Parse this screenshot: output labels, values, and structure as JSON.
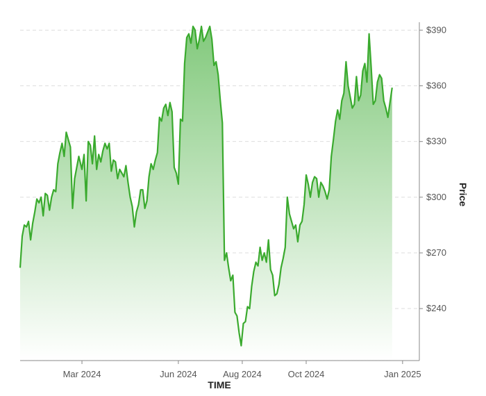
{
  "chart_data": {
    "type": "area",
    "xlabel": "TIME",
    "ylabel": "Price",
    "y_axis_position": "right",
    "grid": "horizontal-dashed",
    "xlim": [
      "2024-01-02",
      "2025-01-17"
    ],
    "ylim": [
      212,
      392
    ],
    "x_ticks": [
      {
        "date": "2024-03-01",
        "label": "Mar 2024"
      },
      {
        "date": "2024-06-01",
        "label": "Jun 2024"
      },
      {
        "date": "2024-08-01",
        "label": "Aug 2024"
      },
      {
        "date": "2024-10-01",
        "label": "Oct 2024"
      },
      {
        "date": "2025-01-01",
        "label": "Jan 2025"
      }
    ],
    "y_ticks": [
      {
        "value": 240,
        "label": "$240"
      },
      {
        "value": 270,
        "label": "$270"
      },
      {
        "value": 300,
        "label": "$300"
      },
      {
        "value": 330,
        "label": "$330"
      },
      {
        "value": 360,
        "label": "$360"
      },
      {
        "value": 390,
        "label": "$390"
      }
    ],
    "colors": {
      "line": "#3aaa2e",
      "fill_top": "#82c97c",
      "fill_bottom": "#ffffff",
      "grid": "#dddddd",
      "axis": "#888888"
    },
    "series": [
      {
        "values": [
          [
            "2024-01-02",
            262
          ],
          [
            "2024-01-04",
            279
          ],
          [
            "2024-01-06",
            285
          ],
          [
            "2024-01-08",
            284
          ],
          [
            "2024-01-10",
            287
          ],
          [
            "2024-01-12",
            277
          ],
          [
            "2024-01-14",
            286
          ],
          [
            "2024-01-16",
            292
          ],
          [
            "2024-01-18",
            299
          ],
          [
            "2024-01-20",
            297
          ],
          [
            "2024-01-22",
            300
          ],
          [
            "2024-01-24",
            290
          ],
          [
            "2024-01-26",
            302
          ],
          [
            "2024-01-28",
            301
          ],
          [
            "2024-01-30",
            293
          ],
          [
            "2024-02-01",
            300
          ],
          [
            "2024-02-03",
            304
          ],
          [
            "2024-02-05",
            303
          ],
          [
            "2024-02-07",
            318
          ],
          [
            "2024-02-09",
            324
          ],
          [
            "2024-02-11",
            329
          ],
          [
            "2024-02-13",
            322
          ],
          [
            "2024-02-15",
            335
          ],
          [
            "2024-02-17",
            331
          ],
          [
            "2024-02-19",
            327
          ],
          [
            "2024-02-21",
            294
          ],
          [
            "2024-02-23",
            310
          ],
          [
            "2024-02-25",
            316
          ],
          [
            "2024-02-27",
            322
          ],
          [
            "2024-03-01",
            315
          ],
          [
            "2024-03-03",
            323
          ],
          [
            "2024-03-05",
            298
          ],
          [
            "2024-03-07",
            330
          ],
          [
            "2024-03-09",
            328
          ],
          [
            "2024-03-11",
            318
          ],
          [
            "2024-03-13",
            333
          ],
          [
            "2024-03-15",
            315
          ],
          [
            "2024-03-17",
            323
          ],
          [
            "2024-03-19",
            319
          ],
          [
            "2024-03-21",
            325
          ],
          [
            "2024-03-23",
            329
          ],
          [
            "2024-03-25",
            326
          ],
          [
            "2024-03-27",
            329
          ],
          [
            "2024-03-29",
            314
          ],
          [
            "2024-03-31",
            320
          ],
          [
            "2024-04-02",
            319
          ],
          [
            "2024-04-04",
            310
          ],
          [
            "2024-04-06",
            315
          ],
          [
            "2024-04-08",
            313
          ],
          [
            "2024-04-10",
            311
          ],
          [
            "2024-04-12",
            317
          ],
          [
            "2024-04-14",
            308
          ],
          [
            "2024-04-16",
            300
          ],
          [
            "2024-04-18",
            295
          ],
          [
            "2024-04-20",
            284
          ],
          [
            "2024-04-22",
            292
          ],
          [
            "2024-04-24",
            296
          ],
          [
            "2024-04-26",
            304
          ],
          [
            "2024-04-28",
            304
          ],
          [
            "2024-04-30",
            294
          ],
          [
            "2024-05-02",
            298
          ],
          [
            "2024-05-04",
            311
          ],
          [
            "2024-05-06",
            318
          ],
          [
            "2024-05-08",
            315
          ],
          [
            "2024-05-10",
            320
          ],
          [
            "2024-05-12",
            324
          ],
          [
            "2024-05-14",
            343
          ],
          [
            "2024-05-16",
            341
          ],
          [
            "2024-05-18",
            348
          ],
          [
            "2024-05-20",
            350
          ],
          [
            "2024-05-22",
            344
          ],
          [
            "2024-05-24",
            351
          ],
          [
            "2024-05-26",
            346
          ],
          [
            "2024-05-28",
            316
          ],
          [
            "2024-05-30",
            313
          ],
          [
            "2024-06-01",
            307
          ],
          [
            "2024-06-03",
            342
          ],
          [
            "2024-06-05",
            341
          ],
          [
            "2024-06-07",
            372
          ],
          [
            "2024-06-09",
            386
          ],
          [
            "2024-06-11",
            388
          ],
          [
            "2024-06-13",
            383
          ],
          [
            "2024-06-15",
            392
          ],
          [
            "2024-06-17",
            390
          ],
          [
            "2024-06-19",
            380
          ],
          [
            "2024-06-21",
            385
          ],
          [
            "2024-06-23",
            392
          ],
          [
            "2024-06-25",
            384
          ],
          [
            "2024-06-27",
            386
          ],
          [
            "2024-06-29",
            389
          ],
          [
            "2024-07-01",
            392
          ],
          [
            "2024-07-03",
            385
          ],
          [
            "2024-07-05",
            371
          ],
          [
            "2024-07-07",
            373
          ],
          [
            "2024-07-09",
            366
          ],
          [
            "2024-07-11",
            352
          ],
          [
            "2024-07-13",
            340
          ],
          [
            "2024-07-15",
            266
          ],
          [
            "2024-07-17",
            270
          ],
          [
            "2024-07-19",
            262
          ],
          [
            "2024-07-21",
            255
          ],
          [
            "2024-07-23",
            258
          ],
          [
            "2024-07-25",
            238
          ],
          [
            "2024-07-27",
            236
          ],
          [
            "2024-07-29",
            227
          ],
          [
            "2024-07-31",
            220
          ],
          [
            "2024-08-02",
            232
          ],
          [
            "2024-08-04",
            233
          ],
          [
            "2024-08-06",
            241
          ],
          [
            "2024-08-08",
            240
          ],
          [
            "2024-08-10",
            252
          ],
          [
            "2024-08-12",
            260
          ],
          [
            "2024-08-14",
            265
          ],
          [
            "2024-08-16",
            263
          ],
          [
            "2024-08-18",
            273
          ],
          [
            "2024-08-20",
            266
          ],
          [
            "2024-08-22",
            270
          ],
          [
            "2024-08-24",
            265
          ],
          [
            "2024-08-26",
            277
          ],
          [
            "2024-08-28",
            261
          ],
          [
            "2024-08-30",
            258
          ],
          [
            "2024-09-01",
            247
          ],
          [
            "2024-09-03",
            248
          ],
          [
            "2024-09-05",
            253
          ],
          [
            "2024-09-07",
            262
          ],
          [
            "2024-09-09",
            267
          ],
          [
            "2024-09-11",
            273
          ],
          [
            "2024-09-13",
            300
          ],
          [
            "2024-09-15",
            291
          ],
          [
            "2024-09-17",
            287
          ],
          [
            "2024-09-19",
            283
          ],
          [
            "2024-09-21",
            285
          ],
          [
            "2024-09-23",
            276
          ],
          [
            "2024-09-25",
            285
          ],
          [
            "2024-09-27",
            287
          ],
          [
            "2024-09-29",
            296
          ],
          [
            "2024-10-01",
            312
          ],
          [
            "2024-10-03",
            307
          ],
          [
            "2024-10-05",
            300
          ],
          [
            "2024-10-07",
            308
          ],
          [
            "2024-10-09",
            311
          ],
          [
            "2024-10-11",
            310
          ],
          [
            "2024-10-13",
            300
          ],
          [
            "2024-10-15",
            308
          ],
          [
            "2024-10-17",
            306
          ],
          [
            "2024-10-19",
            303
          ],
          [
            "2024-10-21",
            299
          ],
          [
            "2024-10-23",
            304
          ],
          [
            "2024-10-25",
            322
          ],
          [
            "2024-10-27",
            331
          ],
          [
            "2024-10-29",
            341
          ],
          [
            "2024-10-31",
            347
          ],
          [
            "2024-11-02",
            342
          ],
          [
            "2024-11-04",
            352
          ],
          [
            "2024-11-06",
            356
          ],
          [
            "2024-11-08",
            373
          ],
          [
            "2024-11-10",
            360
          ],
          [
            "2024-11-12",
            354
          ],
          [
            "2024-11-14",
            348
          ],
          [
            "2024-11-16",
            350
          ],
          [
            "2024-11-18",
            365
          ],
          [
            "2024-11-20",
            352
          ],
          [
            "2024-11-22",
            355
          ],
          [
            "2024-11-24",
            368
          ],
          [
            "2024-11-26",
            372
          ],
          [
            "2024-11-28",
            362
          ],
          [
            "2024-11-30",
            388
          ],
          [
            "2024-12-02",
            370
          ],
          [
            "2024-12-04",
            350
          ],
          [
            "2024-12-06",
            352
          ],
          [
            "2024-12-08",
            362
          ],
          [
            "2024-12-10",
            366
          ],
          [
            "2024-12-12",
            364
          ],
          [
            "2024-12-14",
            352
          ],
          [
            "2024-12-16",
            348
          ],
          [
            "2024-12-18",
            343
          ],
          [
            "2024-12-20",
            351
          ],
          [
            "2024-12-22",
            359
          ]
        ]
      }
    ]
  }
}
